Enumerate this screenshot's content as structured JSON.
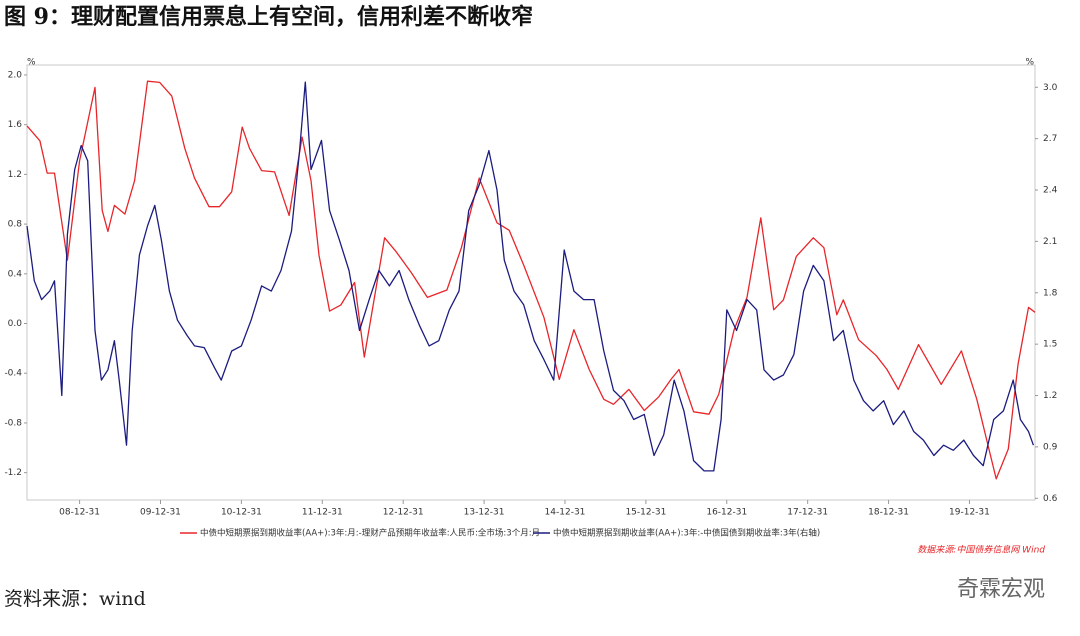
{
  "chart_data": {
    "type": "line",
    "title": "图 9：理财配置信用票息上有空间，信用利差不断收窄",
    "source_note": "数据来源:中国债券信息网 Wind",
    "footnote": "资料来源：wind",
    "watermark": "奇霖宏观",
    "y_unit": "%",
    "y2_unit": "%",
    "xlim": [
      2008.35,
      2020.81
    ],
    "xticks": [
      {
        "value": 2009,
        "label": "08-12-31"
      },
      {
        "value": 2010,
        "label": "09-12-31"
      },
      {
        "value": 2011,
        "label": "10-12-31"
      },
      {
        "value": 2012,
        "label": "11-12-31"
      },
      {
        "value": 2013,
        "label": "12-12-31"
      },
      {
        "value": 2014,
        "label": "13-12-31"
      },
      {
        "value": 2015,
        "label": "14-12-31"
      },
      {
        "value": 2016,
        "label": "15-12-31"
      },
      {
        "value": 2017,
        "label": "16-12-31"
      },
      {
        "value": 2018,
        "label": "17-12-31"
      },
      {
        "value": 2019,
        "label": "18-12-31"
      },
      {
        "value": 2020,
        "label": "19-12-31"
      }
    ],
    "ylim": [
      -1.42,
      2.08
    ],
    "yticks": [
      -1.2,
      -0.8,
      -0.4,
      {
        "value": 0,
        "label": "0.0"
      },
      0.4,
      0.8,
      1.2,
      1.6,
      {
        "value": 2,
        "label": "2.0"
      }
    ],
    "y2lim": [
      0.59,
      3.13
    ],
    "y2ticks": [
      0.6,
      0.9,
      1.2,
      1.5,
      1.8,
      2.1,
      2.4,
      2.7,
      {
        "value": 3,
        "label": "3.0"
      }
    ],
    "series": [
      {
        "name": "中债中短期票据到期收益率(AA+):3年:月:-理财产品预期年收益率:人民币:全市场:3个月:月",
        "color": "#e8262a",
        "x": [
          2008.35,
          2008.51,
          2008.6,
          2008.69,
          2008.85,
          2009.0,
          2009.19,
          2009.28,
          2009.35,
          2009.43,
          2009.56,
          2009.68,
          2009.84,
          2009.99,
          2010.14,
          2010.3,
          2010.42,
          2010.6,
          2010.73,
          2010.88,
          2011.01,
          2011.1,
          2011.25,
          2011.41,
          2011.59,
          2011.75,
          2011.86,
          2011.96,
          2012.09,
          2012.23,
          2012.4,
          2012.52,
          2012.77,
          2012.91,
          2013.1,
          2013.3,
          2013.54,
          2013.72,
          2013.94,
          2014.16,
          2014.31,
          2014.49,
          2014.74,
          2014.93,
          2015.11,
          2015.3,
          2015.48,
          2015.6,
          2015.79,
          2015.98,
          2016.16,
          2016.31,
          2016.41,
          2016.59,
          2016.78,
          2016.9,
          2017.09,
          2017.25,
          2017.42,
          2017.58,
          2017.7,
          2017.86,
          2018.07,
          2018.2,
          2018.36,
          2018.44,
          2018.63,
          2018.85,
          2018.98,
          2019.12,
          2019.37,
          2019.65,
          2019.9,
          2020.09,
          2020.33,
          2020.48,
          2020.6,
          2020.73,
          2020.81
        ],
        "values": [
          1.59,
          1.47,
          1.21,
          1.21,
          0.51,
          1.31,
          1.9,
          0.91,
          0.74,
          0.95,
          0.88,
          1.15,
          1.95,
          1.94,
          1.83,
          1.41,
          1.17,
          0.94,
          0.94,
          1.06,
          1.58,
          1.41,
          1.23,
          1.22,
          0.87,
          1.5,
          1.15,
          0.55,
          0.1,
          0.15,
          0.33,
          -0.27,
          0.69,
          0.58,
          0.41,
          0.21,
          0.27,
          0.61,
          1.17,
          0.81,
          0.75,
          0.47,
          0.05,
          -0.45,
          -0.05,
          -0.37,
          -0.61,
          -0.65,
          -0.53,
          -0.7,
          -0.59,
          -0.45,
          -0.37,
          -0.71,
          -0.73,
          -0.57,
          -0.05,
          0.21,
          0.85,
          0.11,
          0.19,
          0.54,
          0.69,
          0.61,
          0.07,
          0.19,
          -0.13,
          -0.26,
          -0.37,
          -0.53,
          -0.17,
          -0.49,
          -0.22,
          -0.61,
          -1.25,
          -1.01,
          -0.33,
          0.13,
          0.09
        ]
      },
      {
        "name": "中债中短期票据到期收益率(AA+):3年:-中债国债到期收益率:3年(右轴)",
        "color": "#1c1c80",
        "axis": "y2",
        "x": [
          2008.35,
          2008.44,
          2008.53,
          2008.63,
          2008.69,
          2008.78,
          2008.85,
          2008.94,
          2009.02,
          2009.1,
          2009.19,
          2009.27,
          2009.35,
          2009.43,
          2009.49,
          2009.58,
          2009.65,
          2009.74,
          2009.84,
          2009.93,
          2010.01,
          2010.11,
          2010.21,
          2010.33,
          2010.42,
          2010.54,
          2010.67,
          2010.75,
          2010.88,
          2011.0,
          2011.12,
          2011.25,
          2011.37,
          2011.49,
          2011.62,
          2011.72,
          2011.79,
          2011.86,
          2011.99,
          2012.09,
          2012.21,
          2012.33,
          2012.46,
          2012.58,
          2012.7,
          2012.83,
          2012.95,
          2013.07,
          2013.2,
          2013.32,
          2013.44,
          2013.57,
          2013.69,
          2013.81,
          2013.94,
          2014.06,
          2014.16,
          2014.25,
          2014.37,
          2014.49,
          2014.62,
          2014.74,
          2014.86,
          2014.99,
          2015.11,
          2015.23,
          2015.36,
          2015.48,
          2015.6,
          2015.73,
          2015.85,
          2015.98,
          2016.1,
          2016.22,
          2016.35,
          2016.47,
          2016.59,
          2016.72,
          2016.84,
          2016.93,
          2017.0,
          2017.12,
          2017.25,
          2017.37,
          2017.46,
          2017.58,
          2017.7,
          2017.83,
          2017.95,
          2018.07,
          2018.2,
          2018.32,
          2018.44,
          2018.57,
          2018.69,
          2018.81,
          2018.94,
          2019.06,
          2019.19,
          2019.31,
          2019.43,
          2019.56,
          2019.68,
          2019.8,
          2019.93,
          2020.05,
          2020.17,
          2020.3,
          2020.42,
          2020.54,
          2020.63,
          2020.73,
          2020.79
        ],
        "values": [
          2.19,
          1.87,
          1.76,
          1.81,
          1.87,
          1.2,
          2.14,
          2.52,
          2.66,
          2.57,
          1.58,
          1.29,
          1.35,
          1.52,
          1.29,
          0.91,
          1.58,
          2.02,
          2.19,
          2.31,
          2.11,
          1.81,
          1.64,
          1.55,
          1.49,
          1.48,
          1.36,
          1.29,
          1.46,
          1.49,
          1.64,
          1.84,
          1.81,
          1.93,
          2.16,
          2.63,
          3.03,
          2.52,
          2.69,
          2.28,
          2.11,
          1.93,
          1.58,
          1.76,
          1.93,
          1.84,
          1.93,
          1.76,
          1.61,
          1.49,
          1.52,
          1.7,
          1.81,
          2.28,
          2.43,
          2.63,
          2.4,
          1.99,
          1.81,
          1.73,
          1.52,
          1.41,
          1.29,
          2.05,
          1.81,
          1.76,
          1.76,
          1.46,
          1.23,
          1.17,
          1.06,
          1.09,
          0.85,
          0.97,
          1.29,
          1.11,
          0.82,
          0.76,
          0.76,
          1.06,
          1.7,
          1.58,
          1.76,
          1.7,
          1.35,
          1.29,
          1.32,
          1.44,
          1.81,
          1.96,
          1.87,
          1.52,
          1.58,
          1.29,
          1.17,
          1.11,
          1.17,
          1.03,
          1.11,
          0.99,
          0.94,
          0.85,
          0.91,
          0.88,
          0.94,
          0.85,
          0.79,
          1.06,
          1.11,
          1.29,
          1.06,
          0.99,
          0.91
        ]
      }
    ]
  }
}
